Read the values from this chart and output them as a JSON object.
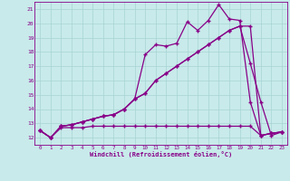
{
  "bg_color": "#c8eaea",
  "grid_color": "#a8d4d4",
  "line_color": "#880088",
  "xlabel": "Windchill (Refroidissement éolien,°C)",
  "ylabel_ticks": [
    12,
    13,
    14,
    15,
    16,
    17,
    18,
    19,
    20,
    21
  ],
  "xlim": [
    -0.5,
    23.5
  ],
  "ylim": [
    11.5,
    21.5
  ],
  "xticks": [
    0,
    1,
    2,
    3,
    4,
    5,
    6,
    7,
    8,
    9,
    10,
    11,
    12,
    13,
    14,
    15,
    16,
    17,
    18,
    19,
    20,
    21,
    22,
    23
  ],
  "series_spiky_x": [
    0,
    1,
    2,
    3,
    4,
    5,
    6,
    7,
    8,
    9,
    10,
    11,
    12,
    13,
    14,
    15,
    16,
    17,
    18,
    19,
    20,
    21,
    22,
    23
  ],
  "series_spiky_y": [
    12.5,
    12.0,
    12.8,
    12.9,
    13.1,
    13.3,
    13.5,
    13.6,
    14.0,
    14.7,
    17.8,
    18.5,
    18.4,
    18.6,
    20.1,
    19.5,
    20.2,
    21.3,
    20.3,
    20.2,
    14.5,
    12.15,
    12.3,
    12.4
  ],
  "series_smooth_x": [
    0,
    1,
    2,
    3,
    4,
    5,
    6,
    7,
    8,
    9,
    10,
    11,
    12,
    13,
    14,
    15,
    16,
    17,
    18,
    19,
    20,
    21,
    22,
    23
  ],
  "series_smooth_y": [
    12.5,
    12.0,
    12.8,
    12.9,
    13.1,
    13.3,
    13.5,
    13.6,
    14.0,
    14.7,
    15.1,
    16.0,
    16.5,
    17.0,
    17.5,
    18.0,
    18.5,
    19.0,
    19.5,
    19.8,
    17.2,
    14.5,
    12.15,
    12.4
  ],
  "series_linear_x": [
    0,
    1,
    2,
    3,
    4,
    5,
    6,
    7,
    8,
    9,
    10,
    11,
    12,
    13,
    14,
    15,
    16,
    17,
    18,
    19,
    20,
    21,
    22,
    23
  ],
  "series_linear_y": [
    12.5,
    12.0,
    12.8,
    12.9,
    13.1,
    13.3,
    13.5,
    13.6,
    14.0,
    14.7,
    15.1,
    16.0,
    16.5,
    17.0,
    17.5,
    18.0,
    18.5,
    19.0,
    19.5,
    19.8,
    19.8,
    12.15,
    12.3,
    12.4
  ],
  "series_flat_x": [
    0,
    1,
    2,
    3,
    4,
    5,
    6,
    7,
    8,
    9,
    10,
    11,
    12,
    13,
    14,
    15,
    16,
    17,
    18,
    19,
    20,
    21,
    22,
    23
  ],
  "series_flat_y": [
    12.5,
    12.0,
    12.7,
    12.7,
    12.7,
    12.8,
    12.8,
    12.8,
    12.8,
    12.8,
    12.8,
    12.8,
    12.8,
    12.8,
    12.8,
    12.8,
    12.8,
    12.8,
    12.8,
    12.8,
    12.8,
    12.15,
    12.3,
    12.4
  ]
}
